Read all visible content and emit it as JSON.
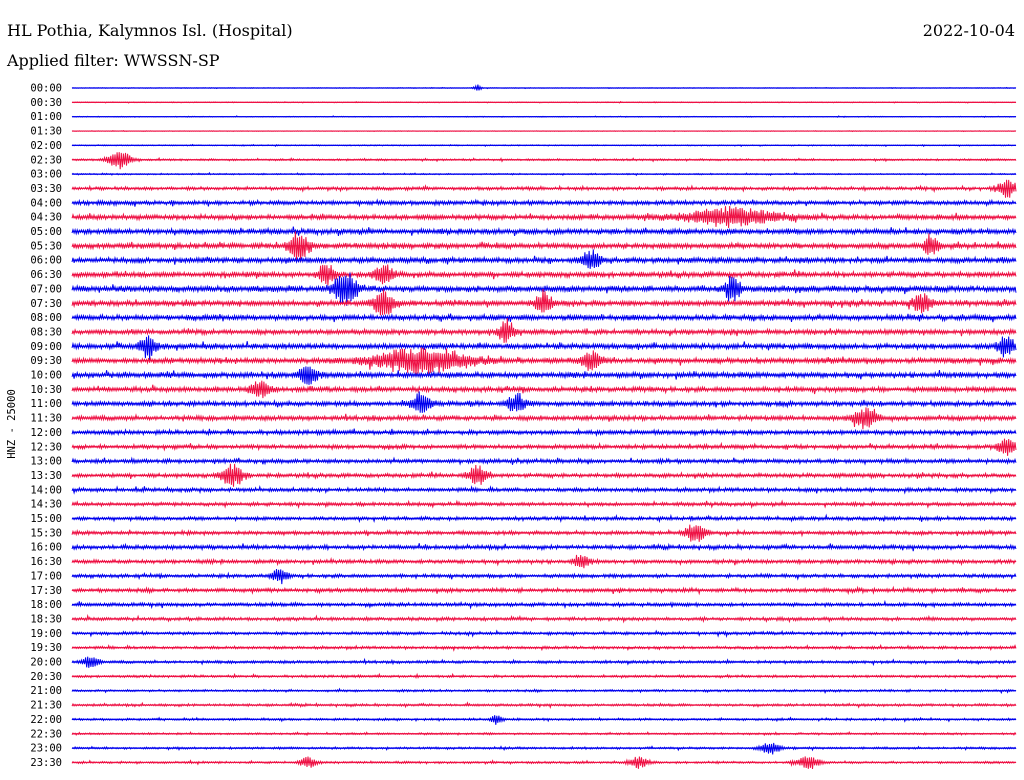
{
  "header": {
    "station": "HL Pothia, Kalymnos Isl. (Hospital)",
    "date": "2022-10-04",
    "filter": "Applied filter: WWSSN-SP"
  },
  "chart_data": {
    "type": "line",
    "title": "HL Pothia, Kalymnos Isl. (Hospital)",
    "ylabel": "HNZ - 25000",
    "colors": [
      "#0000ee",
      "#ee1144"
    ],
    "rows": [
      "00:00",
      "00:30",
      "01:00",
      "01:30",
      "02:00",
      "02:30",
      "03:00",
      "03:30",
      "04:00",
      "04:30",
      "05:00",
      "05:30",
      "06:00",
      "06:30",
      "07:00",
      "07:30",
      "08:00",
      "08:30",
      "09:00",
      "09:30",
      "10:00",
      "10:30",
      "11:00",
      "11:30",
      "12:00",
      "12:30",
      "13:00",
      "13:30",
      "14:00",
      "14:30",
      "15:00",
      "15:30",
      "16:00",
      "16:30",
      "17:00",
      "17:30",
      "18:00",
      "18:30",
      "19:00",
      "19:30",
      "20:00",
      "20:30",
      "21:00",
      "21:30",
      "22:00",
      "22:30",
      "23:00",
      "23:30"
    ],
    "noise_levels": [
      0.12,
      0.15,
      0.15,
      0.1,
      0.2,
      0.35,
      0.25,
      0.6,
      0.8,
      0.9,
      1.0,
      1.0,
      1.0,
      1.0,
      1.1,
      1.0,
      1.0,
      0.9,
      1.0,
      1.0,
      1.0,
      0.9,
      0.9,
      0.85,
      0.8,
      0.75,
      0.75,
      0.75,
      0.7,
      0.65,
      0.65,
      0.7,
      0.75,
      0.7,
      0.65,
      0.7,
      0.65,
      0.6,
      0.55,
      0.5,
      0.5,
      0.45,
      0.4,
      0.45,
      0.4,
      0.35,
      0.4,
      0.4
    ],
    "bursts": [
      {
        "row": 0,
        "t": 0.43,
        "a": 2.5,
        "w": 0.004
      },
      {
        "row": 5,
        "t": 0.05,
        "a": 5,
        "w": 0.012
      },
      {
        "row": 7,
        "t": 0.99,
        "a": 4,
        "w": 0.01
      },
      {
        "row": 9,
        "t": 0.7,
        "a": 3,
        "w": 0.05
      },
      {
        "row": 11,
        "t": 0.24,
        "a": 5,
        "w": 0.01
      },
      {
        "row": 11,
        "t": 0.91,
        "a": 3,
        "w": 0.008
      },
      {
        "row": 12,
        "t": 0.55,
        "a": 3,
        "w": 0.01
      },
      {
        "row": 13,
        "t": 0.27,
        "a": 4,
        "w": 0.008
      },
      {
        "row": 13,
        "t": 0.33,
        "a": 3,
        "w": 0.01
      },
      {
        "row": 14,
        "t": 0.29,
        "a": 5,
        "w": 0.012
      },
      {
        "row": 14,
        "t": 0.7,
        "a": 4,
        "w": 0.008
      },
      {
        "row": 15,
        "t": 0.33,
        "a": 4,
        "w": 0.01
      },
      {
        "row": 15,
        "t": 0.5,
        "a": 4,
        "w": 0.008
      },
      {
        "row": 15,
        "t": 0.9,
        "a": 3,
        "w": 0.01
      },
      {
        "row": 17,
        "t": 0.46,
        "a": 4,
        "w": 0.008
      },
      {
        "row": 18,
        "t": 0.08,
        "a": 4,
        "w": 0.008
      },
      {
        "row": 18,
        "t": 0.99,
        "a": 4,
        "w": 0.008
      },
      {
        "row": 19,
        "t": 0.37,
        "a": 4,
        "w": 0.05
      },
      {
        "row": 19,
        "t": 0.55,
        "a": 3,
        "w": 0.01
      },
      {
        "row": 20,
        "t": 0.25,
        "a": 3,
        "w": 0.01
      },
      {
        "row": 21,
        "t": 0.2,
        "a": 3,
        "w": 0.01
      },
      {
        "row": 22,
        "t": 0.37,
        "a": 4,
        "w": 0.01
      },
      {
        "row": 22,
        "t": 0.47,
        "a": 3,
        "w": 0.01
      },
      {
        "row": 23,
        "t": 0.84,
        "a": 4,
        "w": 0.012
      },
      {
        "row": 25,
        "t": 0.99,
        "a": 3,
        "w": 0.01
      },
      {
        "row": 27,
        "t": 0.17,
        "a": 4,
        "w": 0.012
      },
      {
        "row": 27,
        "t": 0.43,
        "a": 4,
        "w": 0.01
      },
      {
        "row": 31,
        "t": 0.66,
        "a": 4,
        "w": 0.01
      },
      {
        "row": 33,
        "t": 0.54,
        "a": 2.5,
        "w": 0.008
      },
      {
        "row": 34,
        "t": 0.22,
        "a": 3,
        "w": 0.008
      },
      {
        "row": 40,
        "t": 0.02,
        "a": 3,
        "w": 0.008
      },
      {
        "row": 44,
        "t": 0.45,
        "a": 2.5,
        "w": 0.006
      },
      {
        "row": 46,
        "t": 0.74,
        "a": 3,
        "w": 0.01
      },
      {
        "row": 47,
        "t": 0.25,
        "a": 3,
        "w": 0.008
      },
      {
        "row": 47,
        "t": 0.6,
        "a": 3,
        "w": 0.01
      },
      {
        "row": 47,
        "t": 0.78,
        "a": 3.5,
        "w": 0.012
      }
    ]
  }
}
